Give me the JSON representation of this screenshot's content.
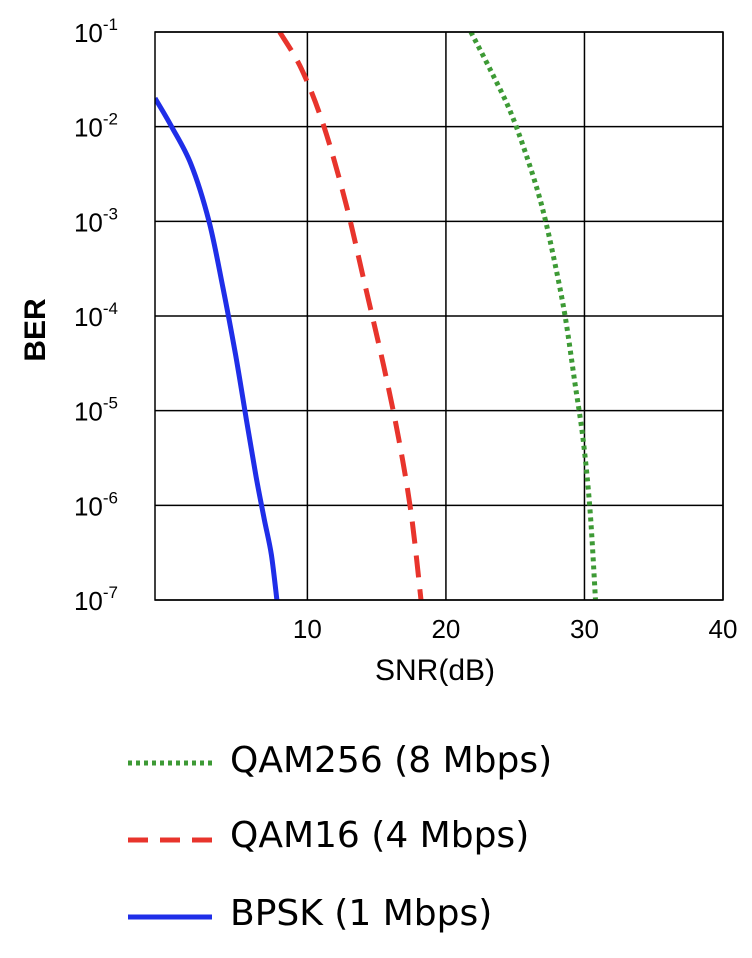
{
  "chart_data": {
    "type": "line",
    "title": "",
    "xlabel": "SNR(dB)",
    "ylabel": "BER",
    "xlim": [
      -1,
      40
    ],
    "ylim": [
      1e-07,
      0.1
    ],
    "y_scale": "log",
    "grid": true,
    "legend_position": "bottom",
    "x_ticks": [
      10,
      20,
      30,
      40
    ],
    "y_ticks": [
      {
        "base": "10",
        "exp": "-1"
      },
      {
        "base": "10",
        "exp": "-2"
      },
      {
        "base": "10",
        "exp": "-3"
      },
      {
        "base": "10",
        "exp": "-4"
      },
      {
        "base": "10",
        "exp": "-5"
      },
      {
        "base": "10",
        "exp": "-6"
      },
      {
        "base": "10",
        "exp": "-7"
      }
    ],
    "series": [
      {
        "name": "QAM256 (8 Mbps)",
        "color": "#3d9a35",
        "style": "dotted",
        "x": [
          21.8,
          23.2,
          24.6,
          25.8,
          26.9,
          27.8,
          28.6,
          29.3,
          29.9,
          30.4,
          30.8
        ],
        "y": [
          0.1,
          0.04,
          0.015,
          0.005,
          0.0015,
          0.0004,
          0.0001,
          2e-05,
          5e-06,
          9e-07,
          1e-07
        ]
      },
      {
        "name": "QAM16 (4 Mbps)",
        "color": "#e8342c",
        "style": "dashed",
        "x": [
          8.0,
          9.6,
          11.2,
          12.8,
          14.2,
          15.5,
          16.6,
          17.5,
          18.2
        ],
        "y": [
          0.1,
          0.04,
          0.01,
          0.0015,
          0.0002,
          3e-05,
          5e-06,
          8e-07,
          1e-07
        ]
      },
      {
        "name": "BPSK (1 Mbps)",
        "color": "#1f2ee8",
        "style": "solid",
        "x": [
          -1.0,
          0.2,
          1.6,
          2.9,
          3.9,
          4.8,
          5.6,
          6.3,
          6.9,
          7.4,
          7.8
        ],
        "y": [
          0.02,
          0.01,
          0.004,
          0.001,
          0.0002,
          4e-05,
          8e-06,
          2e-06,
          7e-07,
          3e-07,
          1e-07
        ]
      }
    ]
  }
}
